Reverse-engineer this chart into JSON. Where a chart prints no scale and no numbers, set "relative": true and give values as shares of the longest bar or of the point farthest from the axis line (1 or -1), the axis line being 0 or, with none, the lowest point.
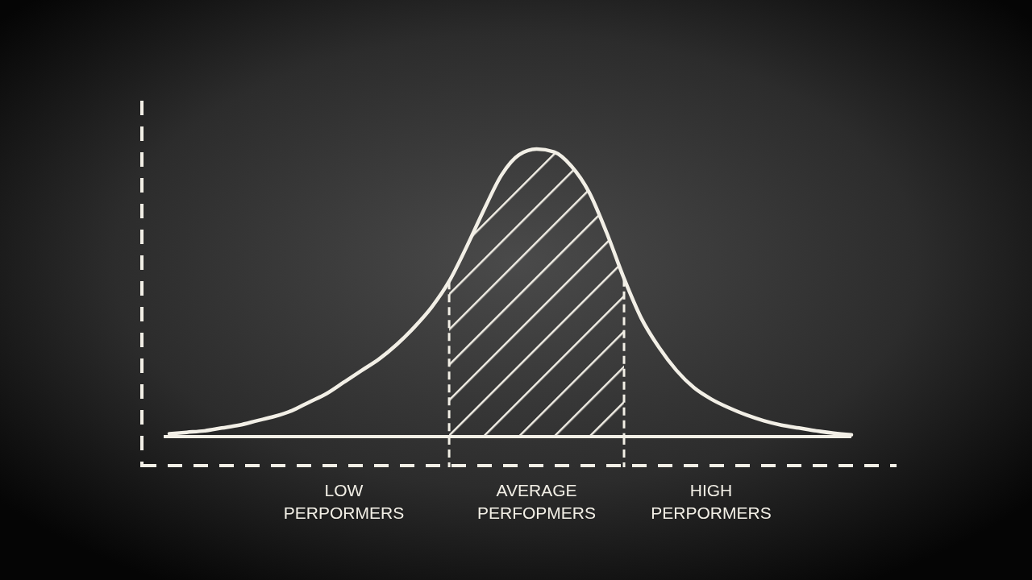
{
  "chart_data": {
    "type": "line",
    "relative": true,
    "categories": [
      null,
      null,
      null,
      null,
      null,
      null,
      null,
      null,
      null,
      null,
      null,
      null,
      null,
      null,
      null,
      null,
      null,
      null,
      null,
      null,
      null,
      null,
      null,
      null,
      null,
      null,
      null,
      null,
      null,
      null,
      null,
      null,
      null,
      null,
      null,
      null,
      null,
      null,
      null,
      null
    ],
    "series": [
      {
        "color": "#f2efe6",
        "values": [
          0.01,
          0.015,
          0.02,
          0.03,
          0.04,
          0.055,
          0.07,
          0.09,
          0.12,
          0.15,
          0.19,
          0.23,
          0.27,
          0.32,
          0.38,
          0.45,
          0.54,
          0.66,
          0.79,
          0.91,
          0.98,
          1.0,
          0.99,
          0.94,
          0.85,
          0.71,
          0.55,
          0.41,
          0.31,
          0.23,
          0.17,
          0.13,
          0.1,
          0.075,
          0.055,
          0.04,
          0.03,
          0.02,
          0.012,
          0.006
        ]
      },
      {
        "type": "area",
        "color": "#f2efe6",
        "values": [
          null,
          null,
          null,
          null,
          null,
          null,
          null,
          null,
          null,
          null,
          null,
          null,
          null,
          null,
          null,
          null,
          0.54,
          0.66,
          0.79,
          0.91,
          0.98,
          1.0,
          0.99,
          0.94,
          0.85,
          0.71,
          0.55,
          null,
          null,
          null,
          null,
          null,
          null,
          null,
          null,
          null,
          null,
          null,
          null,
          null
        ]
      }
    ],
    "annotations": [
      "LOW PERPORMERS",
      "AVERAGE PERFOPMERS",
      "HIGH PERPORMERS"
    ],
    "grid": false,
    "marker": "none",
    "line_style": "solid"
  }
}
